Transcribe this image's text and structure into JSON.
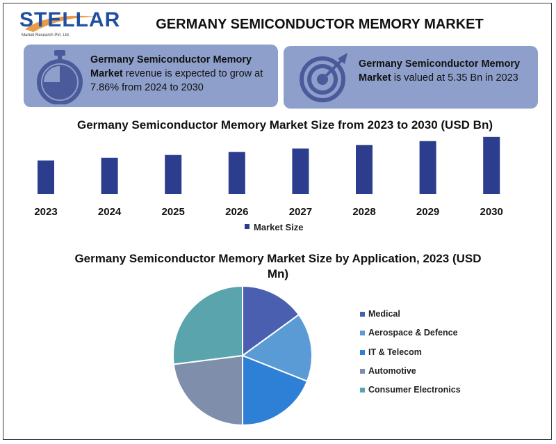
{
  "header": {
    "logo_text": "STELLAR",
    "logo_sub": "Market Research Pvt. Ltd.",
    "title": "GERMANY SEMICONDUCTOR MEMORY MARKET"
  },
  "cards": {
    "left": {
      "bold_text": "Germany Semiconductor Memory Market",
      "text": " revenue is expected to grow at 7.86% from 2024 to 2030"
    },
    "right": {
      "bold_text": "Germany Semiconductor Memory Market",
      "text": " is valued at 5.35 Bn in 2023"
    }
  },
  "colors": {
    "bar": "#2d3d8e",
    "card_bg": "#8e9fcb",
    "logo": "#1f4fa3",
    "icon_dark": "#4a5a9a"
  },
  "chart_data": [
    {
      "type": "bar",
      "title": "Germany Semiconductor Memory Market Size from 2023 to 2030 (USD Bn)",
      "categories": [
        "2023",
        "2024",
        "2025",
        "2026",
        "2027",
        "2028",
        "2029",
        "2030"
      ],
      "series": [
        {
          "name": "Market Size",
          "values": [
            5.35,
            5.77,
            6.22,
            6.71,
            7.24,
            7.81,
            8.42,
            9.08
          ],
          "color": "#2d3d8e"
        }
      ],
      "ylim": [
        0,
        9.5
      ],
      "grid": false,
      "legend": "bottom"
    },
    {
      "type": "pie",
      "title": "Germany Semiconductor Memory Market Size by Application, 2023 (USD Mn)",
      "labels": [
        "Medical",
        "Aerospace & Defence",
        "IT & Telecom",
        "Automotive",
        "Consumer Electronics"
      ],
      "values": [
        15,
        16,
        19,
        23,
        27
      ],
      "colors": [
        "#4a5fb0",
        "#5b9bd5",
        "#2e7fd6",
        "#7f8fab",
        "#5aa5ad"
      ],
      "legend": "right"
    }
  ]
}
